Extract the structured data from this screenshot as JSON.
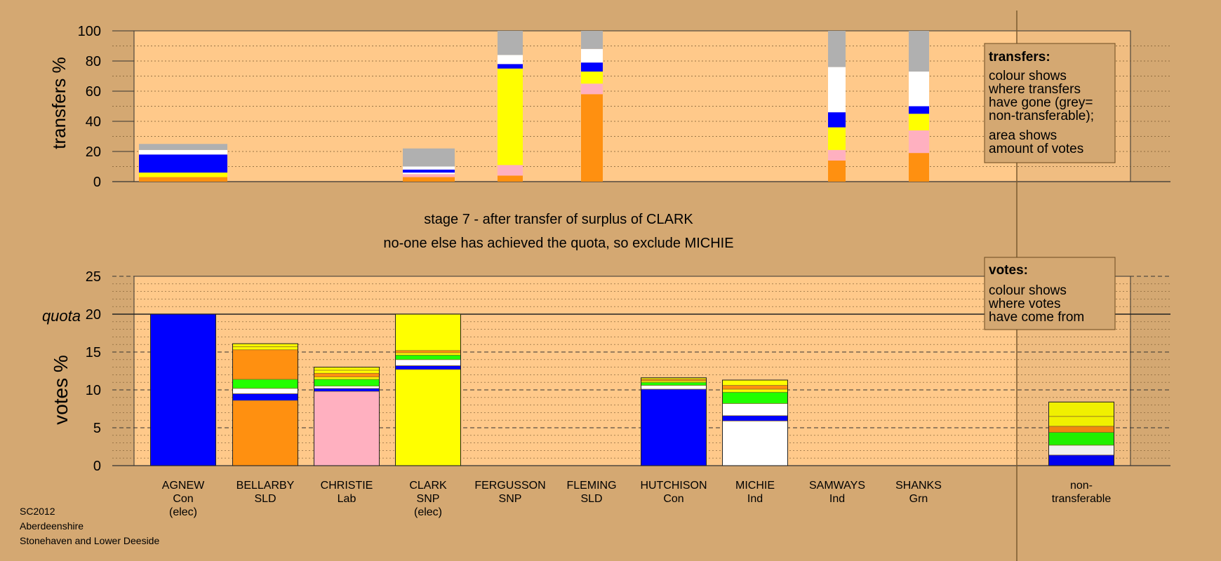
{
  "stage_text": {
    "line1": "stage 7 - after transfer of surplus of CLARK",
    "line2": "no-one else has achieved the quota, so exclude MICHIE"
  },
  "footer": {
    "line1": "SC2012",
    "line2": "Aberdeenshire",
    "line3": "Stonehaven and Lower Deeside"
  },
  "legend_transfers": {
    "title": "transfers:",
    "lines": [
      "colour shows",
      "where transfers",
      "have gone (grey=",
      "non-transferable);",
      "area shows",
      "amount of votes"
    ]
  },
  "legend_votes": {
    "title": "votes:",
    "lines": [
      "colour shows",
      "where votes",
      "have come from"
    ]
  },
  "colors": {
    "background": "#D4A872",
    "plot": "#FFC98A",
    "Con": "#0000FF",
    "SLD": "#FF9010",
    "Lab": "#FFB0C0",
    "SNP": "#FFFF00",
    "Ind": "#FFFFFF",
    "Grn": "#22FF00",
    "NT": "#B0B0B0",
    "dark": "#8B6A2A"
  },
  "candidates": [
    {
      "name": "AGNEW",
      "party": "Con",
      "note": "(elec)"
    },
    {
      "name": "BELLARBY",
      "party": "SLD",
      "note": ""
    },
    {
      "name": "CHRISTIE",
      "party": "Lab",
      "note": ""
    },
    {
      "name": "CLARK",
      "party": "SNP",
      "note": "(elec)"
    },
    {
      "name": "FERGUSSON",
      "party": "SNP",
      "note": ""
    },
    {
      "name": "FLEMING",
      "party": "SLD",
      "note": ""
    },
    {
      "name": "HUTCHISON",
      "party": "Con",
      "note": ""
    },
    {
      "name": "MICHIE",
      "party": "Ind",
      "note": ""
    },
    {
      "name": "SAMWAYS",
      "party": "Ind",
      "note": ""
    },
    {
      "name": "SHANKS",
      "party": "Grn",
      "note": ""
    }
  ],
  "nontransferable_label": [
    "non-",
    "transferable"
  ],
  "chart_data": [
    {
      "type": "bar",
      "subtype": "stacked",
      "ylabel": "transfers %",
      "ylim": [
        0,
        100
      ],
      "yticks": [
        0,
        20,
        40,
        60,
        80,
        100
      ],
      "bars": [
        {
          "segments": [
            {
              "party": "SLD",
              "from": 0,
              "to": 3
            },
            {
              "party": "SNP",
              "from": 3,
              "to": 6
            },
            {
              "party": "Con",
              "from": 6,
              "to": 18
            },
            {
              "party": "Ind",
              "from": 18,
              "to": 21
            },
            {
              "party": "NT",
              "from": 21,
              "to": 25
            }
          ]
        },
        {
          "segments": [
            {
              "party": "SLD",
              "from": 0,
              "to": 3
            },
            {
              "party": "Lab",
              "from": 3,
              "to": 5
            },
            {
              "party": "Ind",
              "from": 5,
              "to": 6
            },
            {
              "party": "Con",
              "from": 6,
              "to": 8
            },
            {
              "party": "Ind",
              "from": 8,
              "to": 10
            },
            {
              "party": "NT",
              "from": 10,
              "to": 22
            }
          ]
        },
        {
          "segments": [
            {
              "party": "SLD",
              "from": 0,
              "to": 4
            },
            {
              "party": "Lab",
              "from": 4,
              "to": 11
            },
            {
              "party": "SNP",
              "from": 11,
              "to": 75
            },
            {
              "party": "Con",
              "from": 75,
              "to": 78
            },
            {
              "party": "Ind",
              "from": 78,
              "to": 84
            },
            {
              "party": "NT",
              "from": 84,
              "to": 100
            }
          ]
        },
        {
          "segments": [
            {
              "party": "SLD",
              "from": 0,
              "to": 58
            },
            {
              "party": "Lab",
              "from": 58,
              "to": 65
            },
            {
              "party": "SNP",
              "from": 65,
              "to": 73
            },
            {
              "party": "Con",
              "from": 73,
              "to": 79
            },
            {
              "party": "Ind",
              "from": 79,
              "to": 88
            },
            {
              "party": "NT",
              "from": 88,
              "to": 100
            }
          ]
        },
        {
          "segments": [
            {
              "party": "SLD",
              "from": 0,
              "to": 14
            },
            {
              "party": "Lab",
              "from": 14,
              "to": 21
            },
            {
              "party": "SNP",
              "from": 21,
              "to": 36
            },
            {
              "party": "Con",
              "from": 36,
              "to": 46
            },
            {
              "party": "Ind",
              "from": 46,
              "to": 76
            },
            {
              "party": "NT",
              "from": 76,
              "to": 100
            }
          ]
        },
        {
          "segments": [
            {
              "party": "SLD",
              "from": 0,
              "to": 19
            },
            {
              "party": "Lab",
              "from": 19,
              "to": 34
            },
            {
              "party": "SNP",
              "from": 34,
              "to": 45
            },
            {
              "party": "Con",
              "from": 45,
              "to": 50
            },
            {
              "party": "Ind",
              "from": 50,
              "to": 73
            },
            {
              "party": "NT",
              "from": 73,
              "to": 100
            }
          ]
        }
      ]
    },
    {
      "type": "bar",
      "subtype": "stacked",
      "ylabel": "votes %",
      "ylim": [
        0,
        25
      ],
      "yticks": [
        0,
        5,
        10,
        15,
        20,
        25
      ],
      "quota": 20,
      "quota_label": "quota",
      "bars": [
        {
          "candidate": "AGNEW",
          "segments": [
            {
              "party": "Con",
              "from": 0,
              "to": 20
            }
          ]
        },
        {
          "candidate": "BELLARBY",
          "segments": [
            {
              "party": "SLD",
              "from": 0,
              "to": 8.6
            },
            {
              "party": "Con",
              "from": 8.6,
              "to": 9.5
            },
            {
              "party": "Ind",
              "from": 9.5,
              "to": 10.2
            },
            {
              "party": "Grn",
              "from": 10.2,
              "to": 11.4
            },
            {
              "party": "SLD",
              "from": 11.4,
              "to": 15.3
            },
            {
              "party": "SNP",
              "from": 15.3,
              "to": 15.7
            },
            {
              "party": "SNP",
              "from": 15.7,
              "to": 16.1
            }
          ]
        },
        {
          "candidate": "CHRISTIE",
          "segments": [
            {
              "party": "Lab",
              "from": 0,
              "to": 9.8
            },
            {
              "party": "Con",
              "from": 9.8,
              "to": 10.2
            },
            {
              "party": "Ind",
              "from": 10.2,
              "to": 10.5
            },
            {
              "party": "Grn",
              "from": 10.5,
              "to": 11.4
            },
            {
              "party": "SNP",
              "from": 11.4,
              "to": 11.7
            },
            {
              "party": "SLD",
              "from": 11.7,
              "to": 12.2
            },
            {
              "party": "SNP",
              "from": 12.2,
              "to": 12.6
            },
            {
              "party": "SNP",
              "from": 12.6,
              "to": 13.0
            }
          ]
        },
        {
          "candidate": "CLARK",
          "segments": [
            {
              "party": "SNP",
              "from": 0,
              "to": 12.7
            },
            {
              "party": "Con",
              "from": 12.7,
              "to": 13.2
            },
            {
              "party": "Ind",
              "from": 13.2,
              "to": 14.0
            },
            {
              "party": "Grn",
              "from": 14.0,
              "to": 14.6
            },
            {
              "party": "SNP",
              "from": 14.6,
              "to": 14.9
            },
            {
              "party": "SLD",
              "from": 14.9,
              "to": 15.2
            },
            {
              "party": "SNP",
              "from": 15.2,
              "to": 20.0
            }
          ]
        },
        {
          "candidate": "FERGUSSON",
          "segments": []
        },
        {
          "candidate": "FLEMING",
          "segments": []
        },
        {
          "candidate": "HUTCHISON",
          "segments": [
            {
              "party": "Con",
              "from": 0,
              "to": 10.1
            },
            {
              "party": "Ind",
              "from": 10.1,
              "to": 10.6
            },
            {
              "party": "Grn",
              "from": 10.6,
              "to": 11.0
            },
            {
              "party": "SNP",
              "from": 11.0,
              "to": 11.2
            },
            {
              "party": "SLD",
              "from": 11.2,
              "to": 11.4
            },
            {
              "party": "SNP",
              "from": 11.4,
              "to": 11.6
            }
          ]
        },
        {
          "candidate": "MICHIE",
          "segments": [
            {
              "party": "Ind",
              "from": 0,
              "to": 5.9
            },
            {
              "party": "Con",
              "from": 5.9,
              "to": 6.6
            },
            {
              "party": "Ind",
              "from": 6.6,
              "to": 8.2
            },
            {
              "party": "Grn",
              "from": 8.2,
              "to": 9.7
            },
            {
              "party": "SNP",
              "from": 9.7,
              "to": 10.1
            },
            {
              "party": "SLD",
              "from": 10.1,
              "to": 10.6
            },
            {
              "party": "SNP",
              "from": 10.6,
              "to": 11.3
            }
          ]
        },
        {
          "candidate": "SAMWAYS",
          "segments": []
        },
        {
          "candidate": "SHANKS",
          "segments": []
        },
        {
          "candidate": "non-transferable",
          "segments": [
            {
              "party": "Con",
              "from": 0,
              "to": 1.4
            },
            {
              "party": "Ind",
              "from": 1.4,
              "to": 2.7
            },
            {
              "party": "Grn",
              "from": 2.7,
              "to": 4.4
            },
            {
              "party": "SLD",
              "from": 4.4,
              "to": 5.2
            },
            {
              "party": "SNP",
              "from": 5.2,
              "to": 6.5
            },
            {
              "party": "SNP",
              "from": 6.5,
              "to": 8.4
            }
          ]
        }
      ]
    }
  ]
}
